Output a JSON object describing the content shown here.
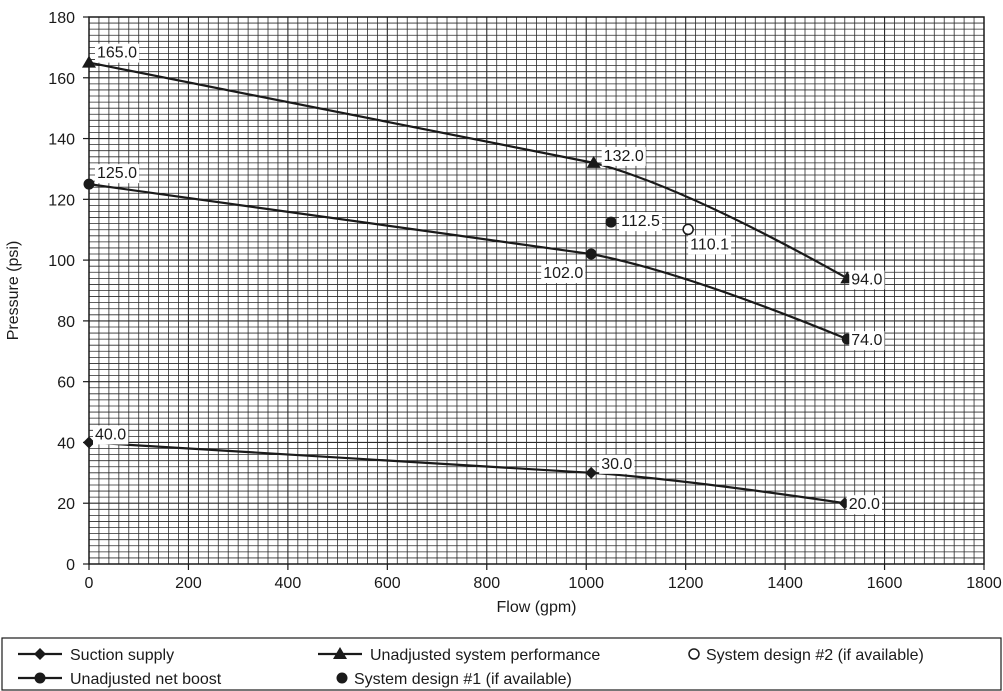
{
  "chart_data": {
    "type": "line",
    "xlabel": "Flow (gpm)",
    "ylabel": "Pressure (psi)",
    "xlim": [
      0,
      1800
    ],
    "ylim": [
      0,
      180
    ],
    "x_ticks": [
      0,
      200,
      400,
      600,
      800,
      1000,
      1200,
      1400,
      1600,
      1800
    ],
    "y_ticks": [
      0,
      20,
      40,
      60,
      80,
      100,
      120,
      140,
      160,
      180
    ],
    "x_tick_labels": [
      "0",
      "200",
      "400",
      "600",
      "800",
      "1000",
      "1200",
      "1400",
      "1600",
      "1800"
    ],
    "y_tick_labels": [
      "0",
      "20",
      "40",
      "60",
      "80",
      "100",
      "120",
      "140",
      "160",
      "180"
    ],
    "grid": true,
    "legend_position": "bottom",
    "series": [
      {
        "name": "Suction supply",
        "marker": "diamond",
        "points": [
          {
            "x": 0,
            "y": 40.0,
            "label": "40.0"
          },
          {
            "x": 1010,
            "y": 30.0,
            "label": "30.0"
          },
          {
            "x": 1520,
            "y": 20.0,
            "label": "20.0"
          }
        ]
      },
      {
        "name": "Unadjusted system performance",
        "marker": "triangle",
        "points": [
          {
            "x": 0,
            "y": 165.0,
            "label": "165.0"
          },
          {
            "x": 1015,
            "y": 132.0,
            "label": "132.0"
          },
          {
            "x": 1525,
            "y": 94.0,
            "label": "94.0"
          }
        ]
      },
      {
        "name": "Unadjusted net boost",
        "marker": "circle",
        "points": [
          {
            "x": 0,
            "y": 125.0,
            "label": "125.0"
          },
          {
            "x": 1010,
            "y": 102.0,
            "label": "102.0"
          },
          {
            "x": 1525,
            "y": 74.0,
            "label": "74.0"
          }
        ]
      }
    ],
    "design_points": [
      {
        "name": "System design #1 (if available)",
        "marker": "filled-circle",
        "x": 1050,
        "y": 112.5,
        "label": "112.5"
      },
      {
        "name": "System design #2 (if available)",
        "marker": "open-circle",
        "x": 1205,
        "y": 110.1,
        "label": "110.1"
      }
    ]
  }
}
